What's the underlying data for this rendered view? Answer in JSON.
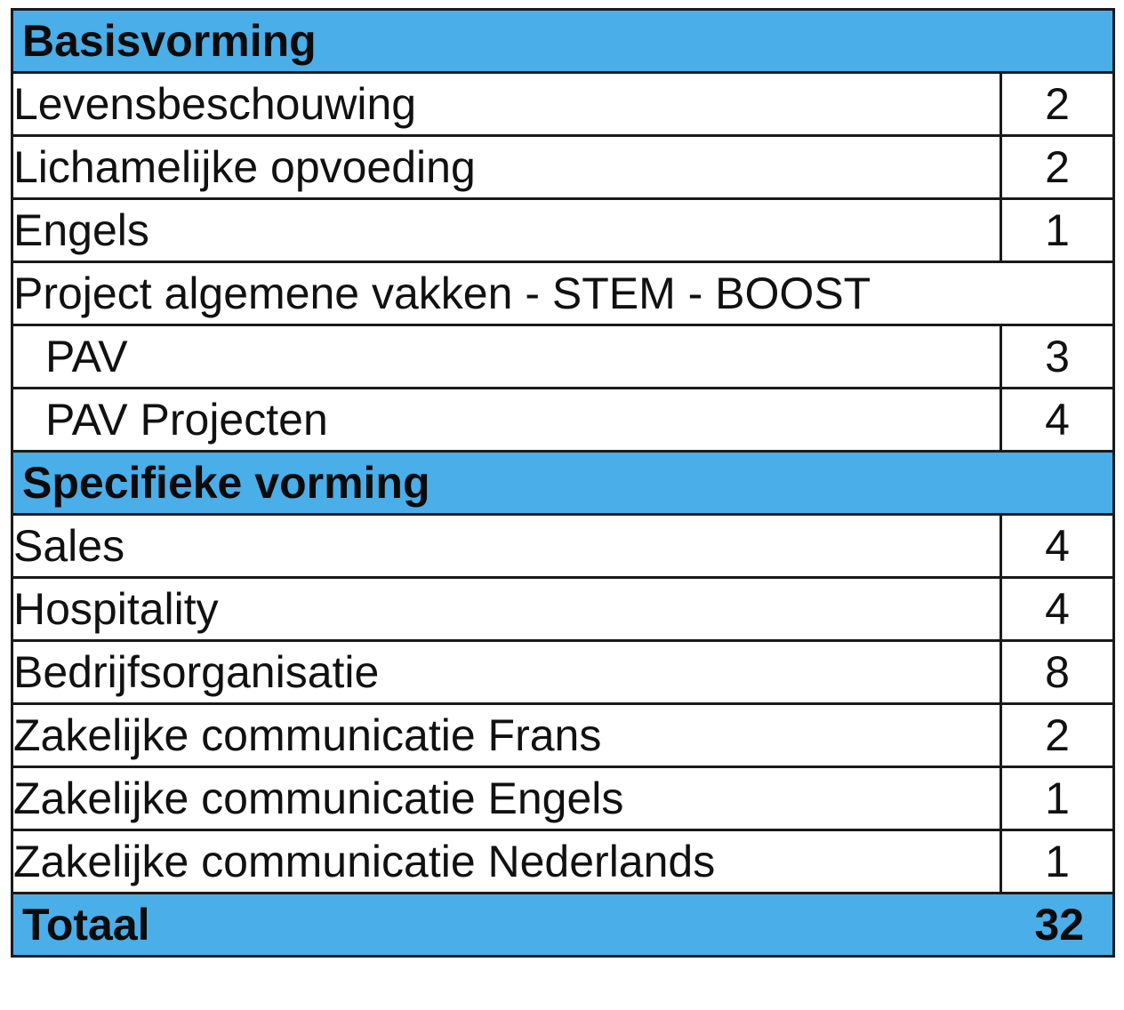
{
  "sections": {
    "basis": {
      "title": "Basisvorming",
      "rows": [
        {
          "name": "Levensbeschouwing",
          "hours": "2"
        },
        {
          "name": "Lichamelijke opvoeding",
          "hours": "2"
        },
        {
          "name": "Engels",
          "hours": "1"
        }
      ],
      "project": {
        "title": "Project algemene vakken - STEM - BOOST",
        "rows": [
          {
            "name": "PAV",
            "hours": "3"
          },
          {
            "name": "PAV Projecten",
            "hours": "4"
          }
        ]
      }
    },
    "specific": {
      "title": "Specifieke vorming",
      "rows": [
        {
          "name": "Sales",
          "hours": "4"
        },
        {
          "name": "Hospitality",
          "hours": "4"
        },
        {
          "name": "Bedrijfsorganisatie",
          "hours": "8"
        },
        {
          "name": "Zakelijke communicatie Frans",
          "hours": "2"
        },
        {
          "name": "Zakelijke communicatie Engels",
          "hours": "1"
        },
        {
          "name": "Zakelijke communicatie Nederlands",
          "hours": "1"
        }
      ]
    }
  },
  "total": {
    "label": "Totaal",
    "value": "32"
  },
  "colors": {
    "header_background": "#4aaee8",
    "border": "#1a1a1a",
    "text": "#111111"
  }
}
